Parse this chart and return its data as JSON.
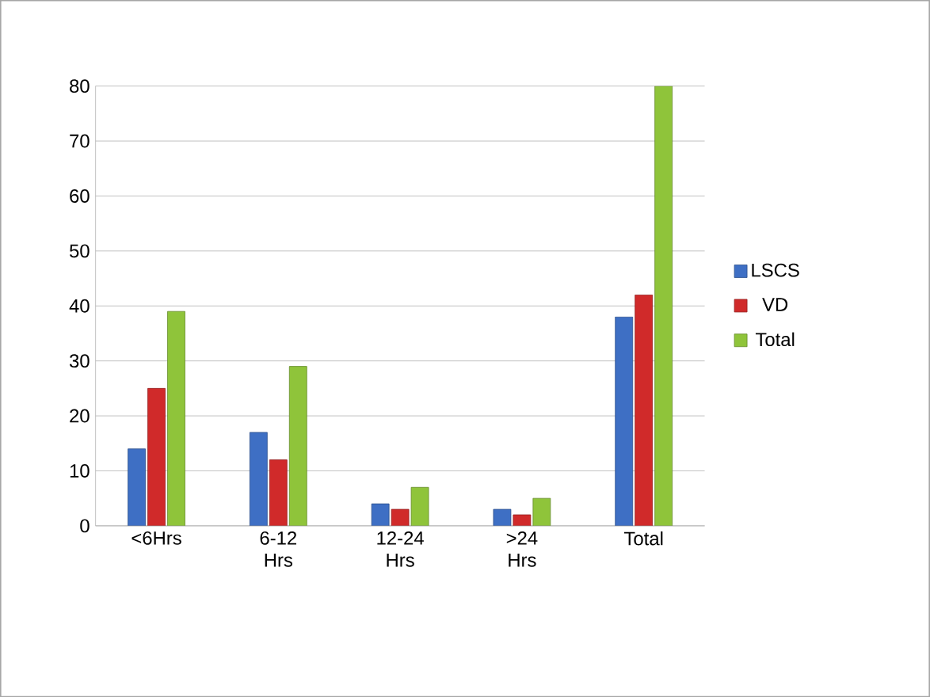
{
  "chart_data": {
    "type": "bar",
    "categories": [
      "<6Hrs",
      "6-12 Hrs",
      "12-24 Hrs",
      ">24 Hrs",
      "Total"
    ],
    "series": [
      {
        "name": "LSCS",
        "color": "#3e6fc4",
        "values": [
          14,
          17,
          4,
          3,
          38
        ]
      },
      {
        "name": "VD",
        "color": "#d02a2a",
        "values": [
          25,
          12,
          3,
          2,
          42
        ]
      },
      {
        "name": "Total",
        "color": "#8fc43a",
        "values": [
          39,
          29,
          7,
          5,
          80
        ]
      }
    ],
    "ylim": [
      0,
      80
    ],
    "yticks": [
      0,
      10,
      20,
      30,
      40,
      50,
      60,
      70,
      80
    ],
    "grid": "y",
    "legend": "right"
  }
}
